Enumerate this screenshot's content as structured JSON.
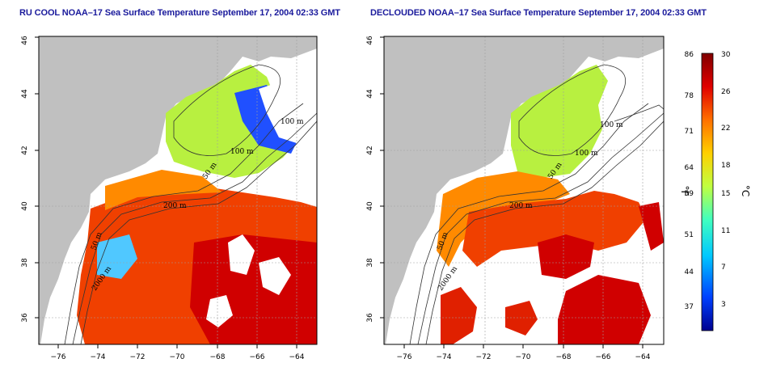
{
  "maps": [
    {
      "id": "left",
      "title": "RU COOL NOAA–17 Sea Surface Temperature September 17, 2004 02:33 GMT",
      "contour_labels": [
        "100 m",
        "100 m",
        "50 m",
        "200 m",
        "50 m",
        "2000 m"
      ]
    },
    {
      "id": "right",
      "title": "DECLOUDED NOAA–17 Sea Surface Temperature September 17, 2004 02:33 GMT",
      "contour_labels": [
        "100 m",
        "100 m",
        "50 m",
        "200 m",
        "50 m",
        "2000 m"
      ]
    }
  ],
  "axes": {
    "x_ticks": [
      "−76",
      "−74",
      "−72",
      "−70",
      "−68",
      "−66",
      "−64"
    ],
    "y_ticks": [
      "36",
      "38",
      "40",
      "42",
      "44",
      "46"
    ],
    "lon_range": [
      -77,
      -63
    ],
    "lat_range": [
      35,
      46
    ]
  },
  "colorbar": {
    "fahrenheit_unit": "°F",
    "celsius_unit": "°C",
    "fahrenheit_ticks": [
      "86",
      "78",
      "71",
      "64",
      "59",
      "51",
      "44",
      "37"
    ],
    "celsius_ticks": [
      "30",
      "26",
      "22",
      "18",
      "15",
      "11",
      "7",
      "3"
    ],
    "colors": [
      "#00008f",
      "#0040ff",
      "#00c8ff",
      "#40ffbf",
      "#c0ff40",
      "#ffd000",
      "#ff7000",
      "#e00000",
      "#800000"
    ]
  },
  "colors": {
    "land": "#c0c0c0",
    "cloud": "#ffffff",
    "contour": "#333333"
  }
}
